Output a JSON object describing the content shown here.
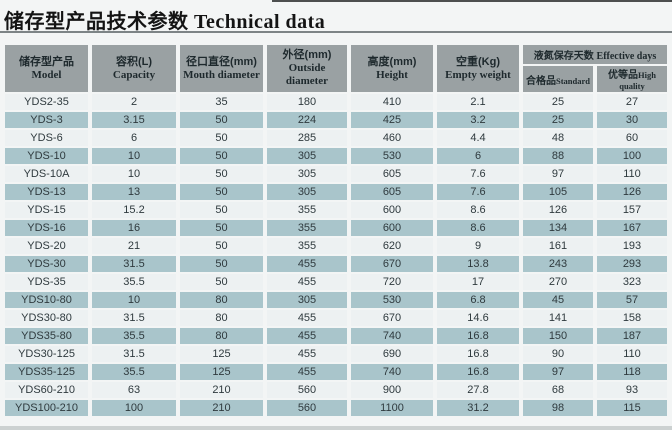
{
  "title": {
    "zh": "储存型产品技术参数",
    "en": " Technical data"
  },
  "colors": {
    "page_background": "#f3f5f5",
    "header_background": "#9aa1a3",
    "row_light": "#edf1f2",
    "row_dark": "#a9c5cb",
    "text": "#2f3a3e"
  },
  "table": {
    "headers": {
      "model": {
        "zh": "储存型产品",
        "en": "Model"
      },
      "capacity": {
        "zh": "容积(L)",
        "en": "Capacity"
      },
      "mouth": {
        "zh": "径口直径(mm)",
        "en": "Mouth diameter"
      },
      "outside": {
        "zh": "外径(mm)",
        "en": "Outside diameter"
      },
      "height": {
        "zh": "高度(mm)",
        "en": "Height"
      },
      "weight": {
        "zh": "空重(Kg)",
        "en": "Empty weight"
      },
      "days": {
        "zh": "液氮保存天数",
        "en": "Effective days"
      },
      "standard": {
        "zh": "合格品",
        "en": "Standard"
      },
      "high": {
        "zh": "优等品",
        "en": "High quality"
      }
    },
    "rows": [
      [
        "YDS2-35",
        "2",
        "35",
        "180",
        "410",
        "2.1",
        "25",
        "27"
      ],
      [
        "YDS-3",
        "3.15",
        "50",
        "224",
        "425",
        "3.2",
        "25",
        "30"
      ],
      [
        "YDS-6",
        "6",
        "50",
        "285",
        "460",
        "4.4",
        "48",
        "60"
      ],
      [
        "YDS-10",
        "10",
        "50",
        "305",
        "530",
        "6",
        "88",
        "100"
      ],
      [
        "YDS-10A",
        "10",
        "50",
        "305",
        "605",
        "7.6",
        "97",
        "110"
      ],
      [
        "YDS-13",
        "13",
        "50",
        "305",
        "605",
        "7.6",
        "105",
        "126"
      ],
      [
        "YDS-15",
        "15.2",
        "50",
        "355",
        "600",
        "8.6",
        "126",
        "157"
      ],
      [
        "YDS-16",
        "16",
        "50",
        "355",
        "600",
        "8.6",
        "134",
        "167"
      ],
      [
        "YDS-20",
        "21",
        "50",
        "355",
        "620",
        "9",
        "161",
        "193"
      ],
      [
        "YDS-30",
        "31.5",
        "50",
        "455",
        "670",
        "13.8",
        "243",
        "293"
      ],
      [
        "YDS-35",
        "35.5",
        "50",
        "455",
        "720",
        "17",
        "270",
        "323"
      ],
      [
        "YDS10-80",
        "10",
        "80",
        "305",
        "530",
        "6.8",
        "45",
        "57"
      ],
      [
        "YDS30-80",
        "31.5",
        "80",
        "455",
        "670",
        "14.6",
        "141",
        "158"
      ],
      [
        "YDS35-80",
        "35.5",
        "80",
        "455",
        "740",
        "16.8",
        "150",
        "187"
      ],
      [
        "YDS30-125",
        "31.5",
        "125",
        "455",
        "690",
        "16.8",
        "90",
        "110"
      ],
      [
        "YDS35-125",
        "35.5",
        "125",
        "455",
        "740",
        "16.8",
        "97",
        "118"
      ],
      [
        "YDS60-210",
        "63",
        "210",
        "560",
        "900",
        "27.8",
        "68",
        "93"
      ],
      [
        "YDS100-210",
        "100",
        "210",
        "560",
        "1100",
        "31.2",
        "98",
        "115"
      ]
    ]
  }
}
